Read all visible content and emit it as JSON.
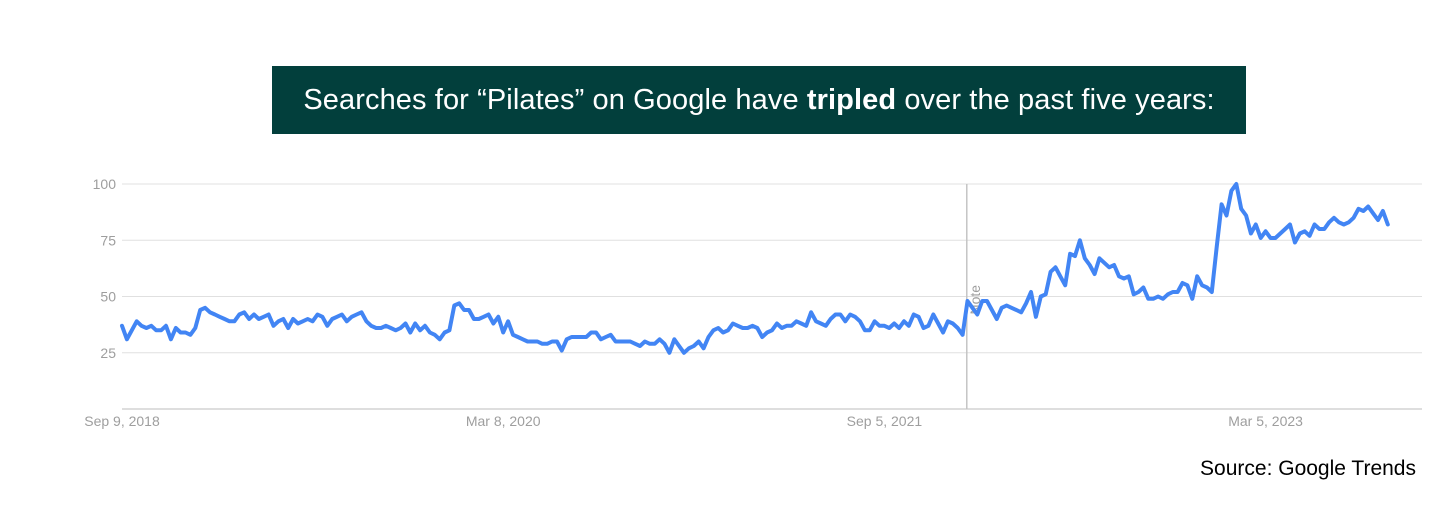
{
  "headline": {
    "before": "Searches for “Pilates” on Google have ",
    "emphasis": "tripled",
    "after": " over the past five years:"
  },
  "source": "Source: Google Trends",
  "colors": {
    "banner_bg": "#023f3c",
    "line": "#4285f4",
    "grid": "#e0e0e0",
    "axis_text": "#9e9e9e"
  },
  "chart_data": {
    "type": "line",
    "title": "",
    "xlabel": "",
    "ylabel": "",
    "ylim": [
      0,
      100
    ],
    "yticks": [
      25,
      50,
      75,
      100
    ],
    "xlim": [
      "2018-09-09",
      "2023-10-15"
    ],
    "xtick_labels": [
      {
        "date": "2018-09-09",
        "label": "Sep 9, 2018"
      },
      {
        "date": "2020-03-08",
        "label": "Mar 8, 2020"
      },
      {
        "date": "2021-09-05",
        "label": "Sep 5, 2021"
      },
      {
        "date": "2023-03-05",
        "label": "Mar 5, 2023"
      }
    ],
    "grid": true,
    "annotation": {
      "date": "2022-01-01",
      "label": "Note"
    },
    "series": [
      {
        "values": [
          37,
          31,
          35,
          39,
          37,
          36,
          37,
          35,
          35,
          37,
          31,
          36,
          34,
          34,
          33,
          36,
          44,
          45,
          43,
          42,
          41,
          40,
          39,
          39,
          42,
          43,
          40,
          42,
          40,
          41,
          42,
          37,
          39,
          40,
          36,
          40,
          38,
          39,
          40,
          39,
          42,
          41,
          37,
          40,
          41,
          42,
          39,
          41,
          42,
          43,
          39,
          37,
          36,
          36,
          37,
          36,
          35,
          36,
          38,
          34,
          38,
          35,
          37,
          34,
          33,
          31,
          34,
          35,
          46,
          47,
          44,
          44,
          40,
          40,
          41,
          42,
          38,
          41,
          34,
          39,
          33,
          32,
          31,
          30,
          30,
          30,
          29,
          29,
          30,
          30,
          26,
          31,
          32,
          32,
          32,
          32,
          34,
          34,
          31,
          32,
          33,
          30,
          30,
          30,
          30,
          29,
          28,
          30,
          29,
          29,
          31,
          29,
          25,
          31,
          28,
          25,
          27,
          28,
          30,
          27,
          32,
          35,
          36,
          34,
          35,
          38,
          37,
          36,
          36,
          37,
          36,
          32,
          34,
          35,
          38,
          36,
          37,
          37,
          39,
          38,
          37,
          43,
          39,
          38,
          37,
          40,
          42,
          42,
          39,
          42,
          41,
          39,
          35,
          35,
          39,
          37,
          37,
          36,
          38,
          36,
          39,
          37,
          42,
          41,
          36,
          37,
          42,
          38,
          34,
          39,
          38,
          36,
          33,
          48,
          45,
          42,
          48,
          48,
          44,
          40,
          45,
          46,
          45,
          44,
          43,
          47,
          52,
          41,
          50,
          51,
          61,
          63,
          59,
          55,
          69,
          68,
          75,
          67,
          64,
          60,
          67,
          65,
          63,
          64,
          59,
          58,
          59,
          51,
          52,
          54,
          49,
          49,
          50,
          49,
          51,
          52,
          52,
          56,
          55,
          49,
          59,
          55,
          54,
          52,
          72,
          91,
          86,
          97,
          100,
          89,
          86,
          78,
          82,
          76,
          79,
          76,
          76,
          78,
          80,
          82,
          74,
          78,
          79,
          77,
          82,
          80,
          80,
          83,
          85,
          83,
          82,
          83,
          85,
          89,
          88,
          90,
          87,
          84,
          88,
          82
        ]
      }
    ]
  }
}
